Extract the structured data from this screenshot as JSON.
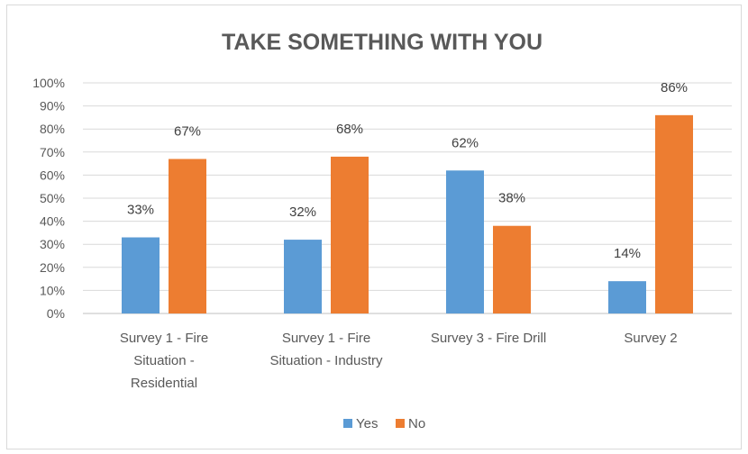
{
  "chart_data": {
    "type": "bar",
    "title": "TAKE SOMETHING WITH YOU",
    "categories": [
      [
        "Survey 1 - Fire",
        "Situation -",
        "Residential"
      ],
      [
        "Survey 1 - Fire",
        "Situation - Industry"
      ],
      [
        "Survey 3 - Fire Drill"
      ],
      [
        "Survey 2"
      ]
    ],
    "series": [
      {
        "name": "Yes",
        "color": "#5b9bd5",
        "values": [
          33,
          32,
          62,
          14
        ],
        "labels": [
          "33%",
          "32%",
          "62%",
          "14%"
        ]
      },
      {
        "name": "No",
        "color": "#ed7d31",
        "values": [
          67,
          68,
          38,
          86
        ],
        "labels": [
          "67%",
          "68%",
          "38%",
          "86%"
        ]
      }
    ],
    "yticks": [
      "0%",
      "10%",
      "20%",
      "30%",
      "40%",
      "50%",
      "60%",
      "70%",
      "80%",
      "90%",
      "100%"
    ],
    "ylim": [
      0,
      100
    ],
    "grid": true,
    "legend": "bottom"
  }
}
